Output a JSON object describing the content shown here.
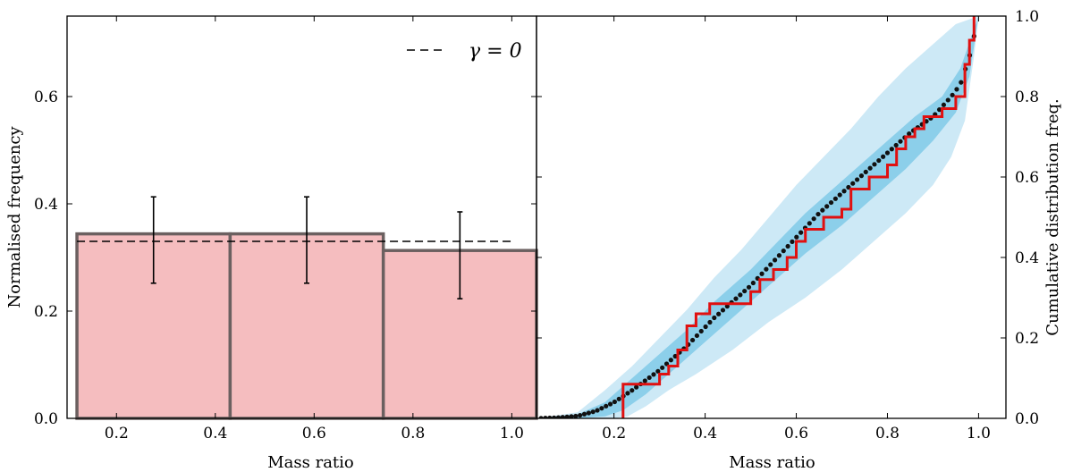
{
  "chart_data": [
    {
      "type": "bar",
      "panel": "left",
      "xlabel": "Mass ratio",
      "ylabel": "Normalised frequency",
      "xlim": [
        0.1,
        1.05
      ],
      "ylim": [
        0.0,
        0.75
      ],
      "xticks": [
        "0.2",
        "0.4",
        "0.6",
        "0.8",
        "1.0"
      ],
      "yticks": [
        "0.0",
        "0.2",
        "0.4",
        "0.6"
      ],
      "bin_edges": [
        0.12,
        0.43,
        0.74,
        1.05
      ],
      "values": [
        0.344,
        0.344,
        0.313
      ],
      "error_bars": [
        {
          "x": 0.275,
          "low": 0.252,
          "high": 0.413
        },
        {
          "x": 0.585,
          "low": 0.252,
          "high": 0.413
        },
        {
          "x": 0.895,
          "low": 0.223,
          "high": 0.385
        }
      ],
      "reference_line": {
        "y": 0.33,
        "x_range": [
          0.12,
          1.0
        ],
        "style": "dashed"
      },
      "legend": {
        "label": "γ = 0",
        "placement": "top-right"
      },
      "colors": {
        "bar_fill": "#f5bdbf",
        "bar_edge": "#6b6060",
        "error": "#000000"
      }
    },
    {
      "type": "line",
      "panel": "right",
      "xlabel": "Mass ratio",
      "ylabel": "Cumulative distribution freq.",
      "xlim": [
        0.03,
        1.06
      ],
      "ylim": [
        0.0,
        1.0
      ],
      "xticks": [
        "0.2",
        "0.4",
        "0.6",
        "0.8",
        "1.0"
      ],
      "yticks": [
        "0.0",
        "0.2",
        "0.4",
        "0.6",
        "0.8",
        "1.0"
      ],
      "model_points": [
        [
          0.03,
          0
        ],
        [
          0.08,
          0.002
        ],
        [
          0.12,
          0.006
        ],
        [
          0.16,
          0.018
        ],
        [
          0.2,
          0.04
        ],
        [
          0.24,
          0.07
        ],
        [
          0.3,
          0.12
        ],
        [
          0.36,
          0.18
        ],
        [
          0.42,
          0.25
        ],
        [
          0.5,
          0.33
        ],
        [
          0.55,
          0.39
        ],
        [
          0.6,
          0.45
        ],
        [
          0.65,
          0.51
        ],
        [
          0.7,
          0.56
        ],
        [
          0.75,
          0.61
        ],
        [
          0.8,
          0.66
        ],
        [
          0.85,
          0.71
        ],
        [
          0.9,
          0.75
        ],
        [
          0.94,
          0.8
        ],
        [
          0.96,
          0.83
        ],
        [
          0.98,
          0.9
        ],
        [
          1.0,
          1.0
        ]
      ],
      "band_outer_upper": [
        [
          0.03,
          0
        ],
        [
          0.12,
          0.015
        ],
        [
          0.18,
          0.07
        ],
        [
          0.24,
          0.13
        ],
        [
          0.3,
          0.2
        ],
        [
          0.36,
          0.27
        ],
        [
          0.42,
          0.35
        ],
        [
          0.48,
          0.42
        ],
        [
          0.54,
          0.5
        ],
        [
          0.6,
          0.58
        ],
        [
          0.66,
          0.65
        ],
        [
          0.72,
          0.72
        ],
        [
          0.78,
          0.8
        ],
        [
          0.84,
          0.87
        ],
        [
          0.9,
          0.93
        ],
        [
          0.95,
          0.98
        ],
        [
          1.0,
          1.0
        ]
      ],
      "band_outer_lower": [
        [
          1.0,
          1.0
        ],
        [
          0.99,
          0.9
        ],
        [
          0.97,
          0.74
        ],
        [
          0.94,
          0.65
        ],
        [
          0.9,
          0.58
        ],
        [
          0.84,
          0.51
        ],
        [
          0.78,
          0.45
        ],
        [
          0.7,
          0.37
        ],
        [
          0.62,
          0.3
        ],
        [
          0.54,
          0.24
        ],
        [
          0.46,
          0.17
        ],
        [
          0.38,
          0.11
        ],
        [
          0.32,
          0.07
        ],
        [
          0.27,
          0.03
        ],
        [
          0.23,
          0.005
        ],
        [
          0.2,
          0.0
        ],
        [
          0.03,
          0
        ]
      ],
      "band_inner_upper": [
        [
          0.03,
          0
        ],
        [
          0.12,
          0.01
        ],
        [
          0.18,
          0.04
        ],
        [
          0.24,
          0.1
        ],
        [
          0.3,
          0.16
        ],
        [
          0.36,
          0.22
        ],
        [
          0.42,
          0.29
        ],
        [
          0.5,
          0.37
        ],
        [
          0.56,
          0.44
        ],
        [
          0.62,
          0.51
        ],
        [
          0.68,
          0.57
        ],
        [
          0.74,
          0.63
        ],
        [
          0.8,
          0.69
        ],
        [
          0.86,
          0.75
        ],
        [
          0.92,
          0.8
        ],
        [
          0.96,
          0.87
        ],
        [
          1.0,
          1.0
        ]
      ],
      "band_inner_lower": [
        [
          1.0,
          1.0
        ],
        [
          0.98,
          0.85
        ],
        [
          0.95,
          0.76
        ],
        [
          0.9,
          0.69
        ],
        [
          0.84,
          0.62
        ],
        [
          0.78,
          0.56
        ],
        [
          0.7,
          0.48
        ],
        [
          0.62,
          0.41
        ],
        [
          0.54,
          0.33
        ],
        [
          0.46,
          0.25
        ],
        [
          0.38,
          0.17
        ],
        [
          0.32,
          0.11
        ],
        [
          0.27,
          0.06
        ],
        [
          0.22,
          0.02
        ],
        [
          0.18,
          0.005
        ],
        [
          0.12,
          0.0
        ],
        [
          0.03,
          0
        ]
      ],
      "observed_step": [
        [
          0.22,
          0.0
        ],
        [
          0.22,
          0.085
        ],
        [
          0.3,
          0.085
        ],
        [
          0.3,
          0.11
        ],
        [
          0.32,
          0.11
        ],
        [
          0.32,
          0.13
        ],
        [
          0.34,
          0.13
        ],
        [
          0.34,
          0.17
        ],
        [
          0.36,
          0.17
        ],
        [
          0.36,
          0.23
        ],
        [
          0.38,
          0.23
        ],
        [
          0.38,
          0.26
        ],
        [
          0.41,
          0.26
        ],
        [
          0.41,
          0.285
        ],
        [
          0.5,
          0.285
        ],
        [
          0.5,
          0.315
        ],
        [
          0.52,
          0.315
        ],
        [
          0.52,
          0.345
        ],
        [
          0.55,
          0.345
        ],
        [
          0.55,
          0.37
        ],
        [
          0.58,
          0.37
        ],
        [
          0.58,
          0.4
        ],
        [
          0.6,
          0.4
        ],
        [
          0.6,
          0.44
        ],
        [
          0.62,
          0.44
        ],
        [
          0.62,
          0.47
        ],
        [
          0.66,
          0.47
        ],
        [
          0.66,
          0.5
        ],
        [
          0.7,
          0.5
        ],
        [
          0.7,
          0.52
        ],
        [
          0.72,
          0.52
        ],
        [
          0.72,
          0.57
        ],
        [
          0.76,
          0.57
        ],
        [
          0.76,
          0.6
        ],
        [
          0.8,
          0.6
        ],
        [
          0.8,
          0.63
        ],
        [
          0.82,
          0.63
        ],
        [
          0.82,
          0.67
        ],
        [
          0.84,
          0.67
        ],
        [
          0.84,
          0.7
        ],
        [
          0.86,
          0.7
        ],
        [
          0.86,
          0.72
        ],
        [
          0.88,
          0.72
        ],
        [
          0.88,
          0.75
        ],
        [
          0.92,
          0.75
        ],
        [
          0.92,
          0.77
        ],
        [
          0.95,
          0.77
        ],
        [
          0.95,
          0.8
        ],
        [
          0.97,
          0.8
        ],
        [
          0.97,
          0.88
        ],
        [
          0.98,
          0.88
        ],
        [
          0.98,
          0.94
        ],
        [
          0.99,
          0.94
        ],
        [
          0.99,
          1.0
        ]
      ],
      "colors": {
        "band_outer": "#cde9f6",
        "band_inner": "#8ccfea",
        "model": "#111111",
        "observed": "#e01010"
      }
    }
  ]
}
